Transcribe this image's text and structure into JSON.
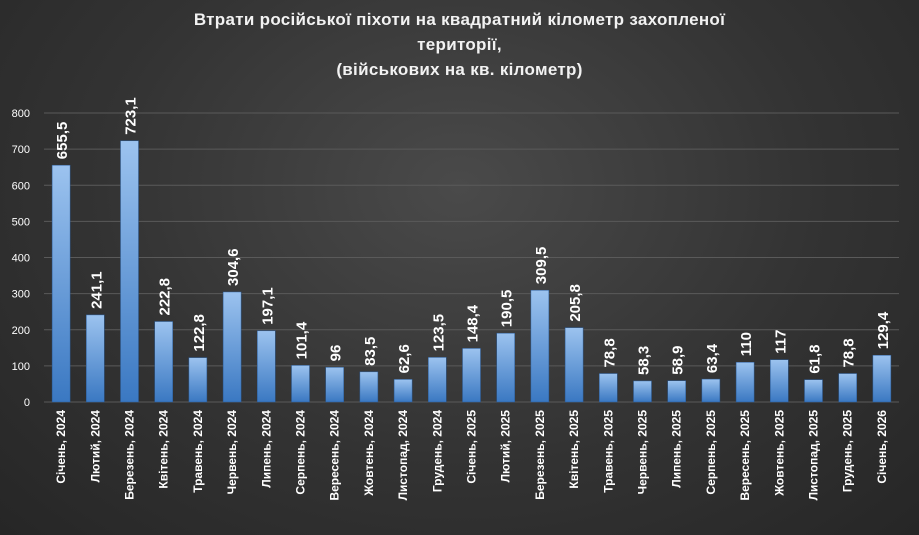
{
  "chart_data": {
    "type": "bar",
    "title_lines": [
      "Втрати російської піхоти на квадратний кілометр захопленої",
      "території,",
      "(військових на кв. кілометр)"
    ],
    "categories": [
      "Січень, 2024",
      "Лютий, 2024",
      "Березень, 2024",
      "Квітень, 2024",
      "Травень, 2024",
      "Червень, 2024",
      "Липень, 2024",
      "Серпень, 2024",
      "Вересень, 2024",
      "Жовтень, 2024",
      "Листопад, 2024",
      "Грудень, 2024",
      "Січень, 2025",
      "Лютий, 2025",
      "Березень, 2025",
      "Квітень, 2025",
      "Травень, 2025",
      "Червень, 2025",
      "Липень, 2025",
      "Серпень, 2025",
      "Вересень, 2025",
      "Жовтень, 2025",
      "Листопад, 2025",
      "Грудень, 2025",
      "Січень, 2026"
    ],
    "values": [
      655.5,
      241.1,
      723.1,
      222.8,
      122.8,
      304.6,
      197.1,
      101.4,
      96,
      83.5,
      62.6,
      123.5,
      148.4,
      190.5,
      309.5,
      205.8,
      78.8,
      58.3,
      58.9,
      63.4,
      110,
      117,
      61.8,
      78.8,
      129.4
    ],
    "value_labels": [
      "655,5",
      "241,1",
      "723,1",
      "222,8",
      "122,8",
      "304,6",
      "197,1",
      "101,4",
      "96",
      "83,5",
      "62,6",
      "123,5",
      "148,4",
      "190,5",
      "309,5",
      "205,8",
      "78,8",
      "58,3",
      "58,9",
      "63,4",
      "110",
      "117",
      "61,8",
      "78,8",
      "129,4"
    ],
    "yticks": [
      "0",
      "100",
      "200",
      "300",
      "400",
      "500",
      "600",
      "700",
      "800"
    ],
    "ylim": [
      0,
      800
    ],
    "grid": true,
    "legend": "none",
    "colors": {
      "bar_top": "#9cc3ef",
      "bar_bottom": "#3a78c2",
      "grid": "#5a5a5a",
      "text": "#ffffff"
    }
  }
}
